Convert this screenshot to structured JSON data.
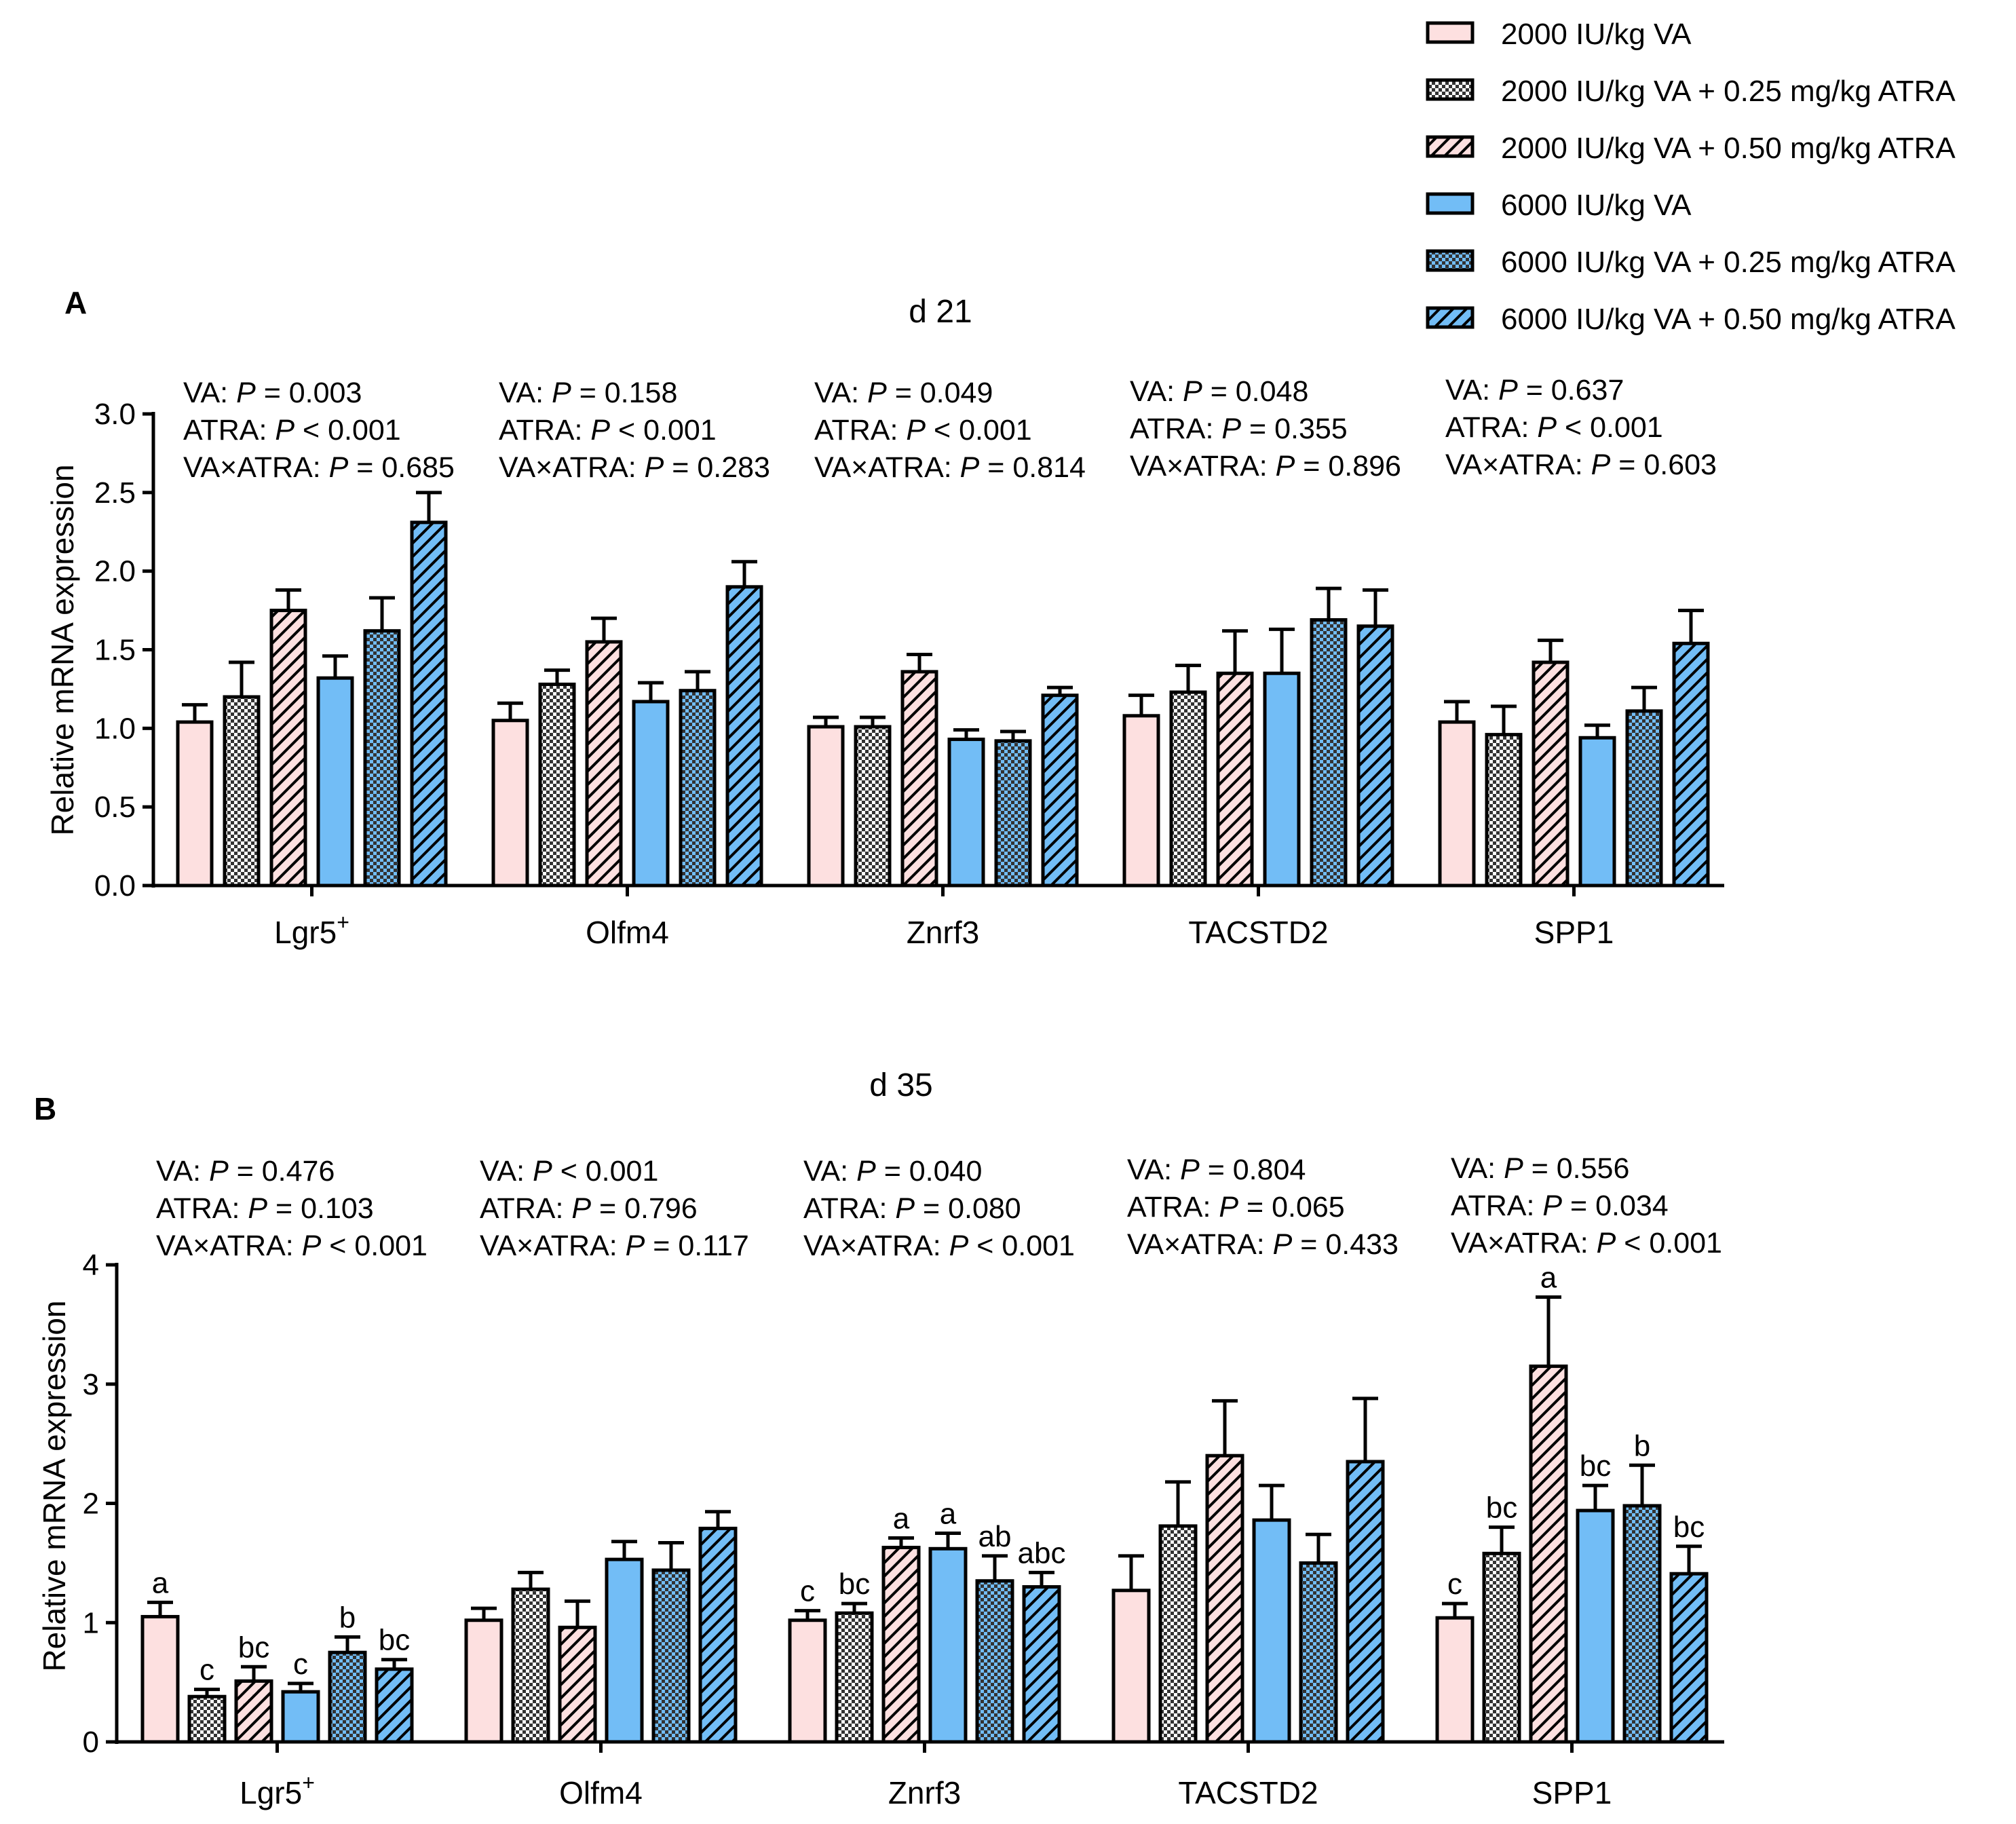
{
  "legend": {
    "items": [
      {
        "label": "2000 IU/kg VA",
        "color": "#fde0e0",
        "pattern": "solid"
      },
      {
        "label": "2000 IU/kg VA + 0.25 mg/kg ATRA",
        "color": "#fde0e0",
        "pattern": "check"
      },
      {
        "label": "2000 IU/kg VA + 0.50 mg/kg ATRA",
        "color": "#fde0e0",
        "pattern": "hatch"
      },
      {
        "label": "6000 IU/kg VA",
        "color": "#72bdf6",
        "pattern": "solid"
      },
      {
        "label": "6000 IU/kg VA + 0.25 mg/kg ATRA",
        "color": "#72bdf6",
        "pattern": "check"
      },
      {
        "label": "6000 IU/kg VA + 0.50 mg/kg ATRA",
        "color": "#72bdf6",
        "pattern": "hatch"
      }
    ]
  },
  "chart_data": [
    {
      "panel": "A",
      "type": "bar",
      "title": "d 21",
      "ylabel": "Relative mRNA expression",
      "ylim": [
        0,
        3.0
      ],
      "yticks": [
        "0.0",
        "0.5",
        "1.0",
        "1.5",
        "2.0",
        "2.5",
        "3.0"
      ],
      "categories": [
        "Lgr5",
        "Olfm4",
        "Znrf3",
        "TACSTD2",
        "SPP1"
      ],
      "category_superscripts": [
        "+",
        "",
        "",
        "",
        ""
      ],
      "values": [
        [
          1.04,
          1.2,
          1.75,
          1.32,
          1.62,
          2.31
        ],
        [
          1.05,
          1.28,
          1.55,
          1.17,
          1.24,
          1.9
        ],
        [
          1.01,
          1.01,
          1.36,
          0.93,
          0.92,
          1.21
        ],
        [
          1.08,
          1.23,
          1.35,
          1.35,
          1.69,
          1.65
        ],
        [
          1.04,
          0.96,
          1.42,
          0.94,
          1.11,
          1.54
        ]
      ],
      "errors": [
        [
          0.11,
          0.22,
          0.13,
          0.14,
          0.21,
          0.19
        ],
        [
          0.11,
          0.09,
          0.15,
          0.12,
          0.12,
          0.16
        ],
        [
          0.06,
          0.06,
          0.11,
          0.06,
          0.06,
          0.05
        ],
        [
          0.13,
          0.17,
          0.27,
          0.28,
          0.2,
          0.23
        ],
        [
          0.13,
          0.18,
          0.14,
          0.08,
          0.15,
          0.21
        ]
      ],
      "letters": [],
      "stats": [
        {
          "va": "0.003",
          "va_op": "=",
          "atra": "0.001",
          "atra_op": "<",
          "int": "0.685",
          "int_op": "="
        },
        {
          "va": "0.158",
          "va_op": "=",
          "atra": "0.001",
          "atra_op": "<",
          "int": "0.283",
          "int_op": "="
        },
        {
          "va": "0.049",
          "va_op": "=",
          "atra": "0.001",
          "atra_op": "<",
          "int": "0.814",
          "int_op": "="
        },
        {
          "va": "0.048",
          "va_op": "=",
          "atra": "0.355",
          "atra_op": "=",
          "int": "0.896",
          "int_op": "="
        },
        {
          "va": "0.637",
          "va_op": "=",
          "atra": "0.001",
          "atra_op": "<",
          "int": "0.603",
          "int_op": "="
        }
      ]
    },
    {
      "panel": "B",
      "type": "bar",
      "title": "d 35",
      "ylabel": "Relative mRNA expression",
      "ylim": [
        0,
        4
      ],
      "yticks": [
        "0",
        "1",
        "2",
        "3",
        "4"
      ],
      "categories": [
        "Lgr5",
        "Olfm4",
        "Znrf3",
        "TACSTD2",
        "SPP1"
      ],
      "category_superscripts": [
        "+",
        "",
        "",
        "",
        ""
      ],
      "values": [
        [
          1.05,
          0.38,
          0.51,
          0.42,
          0.75,
          0.61
        ],
        [
          1.02,
          1.28,
          0.96,
          1.53,
          1.44,
          1.79
        ],
        [
          1.02,
          1.08,
          1.63,
          1.62,
          1.35,
          1.3
        ],
        [
          1.27,
          1.81,
          2.4,
          1.86,
          1.5,
          2.35
        ],
        [
          1.04,
          1.58,
          3.15,
          1.94,
          1.98,
          1.41
        ]
      ],
      "errors": [
        [
          0.12,
          0.06,
          0.12,
          0.07,
          0.13,
          0.08
        ],
        [
          0.1,
          0.14,
          0.22,
          0.15,
          0.23,
          0.14
        ],
        [
          0.08,
          0.08,
          0.08,
          0.13,
          0.21,
          0.12
        ],
        [
          0.29,
          0.37,
          0.46,
          0.29,
          0.24,
          0.53
        ],
        [
          0.12,
          0.22,
          0.58,
          0.21,
          0.34,
          0.23
        ]
      ],
      "letters": [
        [
          "a",
          "c",
          "bc",
          "c",
          "b",
          "bc"
        ],
        [
          "",
          "",
          "",
          "",
          "",
          ""
        ],
        [
          "c",
          "bc",
          "a",
          "a",
          "ab",
          "abc"
        ],
        [
          "",
          "",
          "",
          "",
          "",
          ""
        ],
        [
          "c",
          "bc",
          "a",
          "bc",
          "b",
          "bc"
        ]
      ],
      "stats": [
        {
          "va": "0.476",
          "va_op": "=",
          "atra": "0.103",
          "atra_op": "=",
          "int": "0.001",
          "int_op": "<"
        },
        {
          "va": "0.001",
          "va_op": "<",
          "atra": "0.796",
          "atra_op": "=",
          "int": "0.117",
          "int_op": "="
        },
        {
          "va": "0.040",
          "va_op": "=",
          "atra": "0.080",
          "atra_op": "=",
          "int": "0.001",
          "int_op": "<"
        },
        {
          "va": "0.804",
          "va_op": "=",
          "atra": "0.065",
          "atra_op": "=",
          "int": "0.433",
          "int_op": "="
        },
        {
          "va": "0.556",
          "va_op": "=",
          "atra": "0.034",
          "atra_op": "=",
          "int": "0.001",
          "int_op": "<"
        }
      ]
    }
  ]
}
